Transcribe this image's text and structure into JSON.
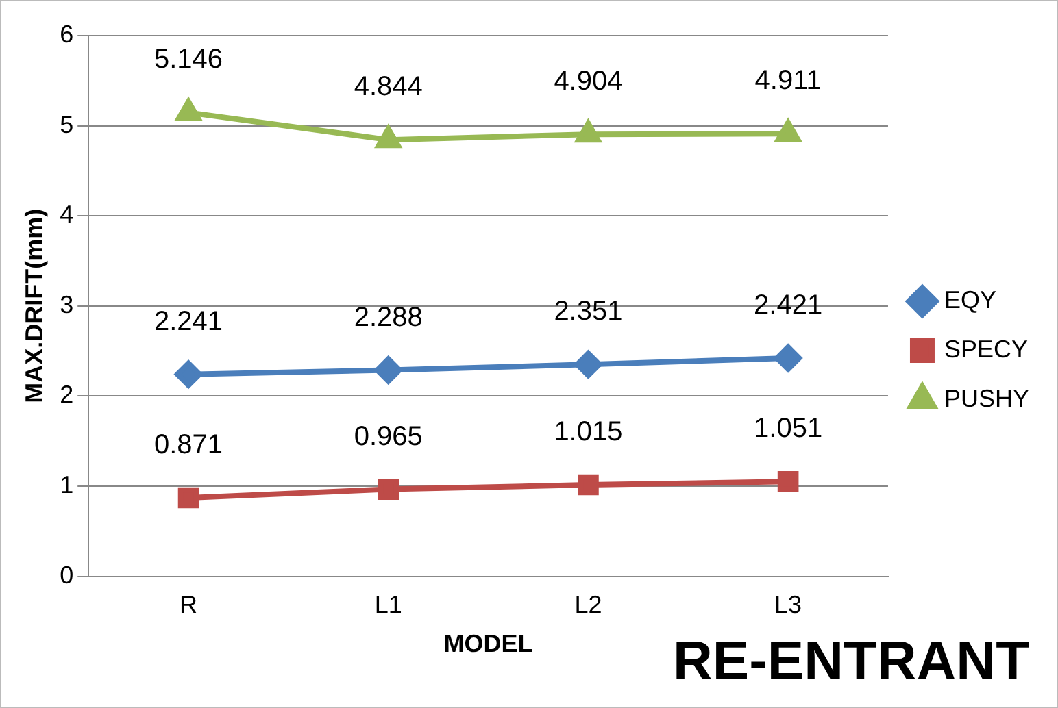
{
  "chart_data": {
    "type": "line",
    "xlabel": "MODEL",
    "ylabel": "MAX.DRIFT(mm)",
    "categories": [
      "R",
      "L1",
      "L2",
      "L3"
    ],
    "series": [
      {
        "name": "EQY",
        "color": "#4a7ebb",
        "marker": "diamond",
        "values": [
          2.241,
          2.288,
          2.351,
          2.421
        ]
      },
      {
        "name": "SPECY",
        "color": "#be4b48",
        "marker": "square",
        "values": [
          0.871,
          0.965,
          1.015,
          1.051
        ]
      },
      {
        "name": "PUSHY",
        "color": "#98b954",
        "marker": "triangle",
        "values": [
          5.146,
          4.844,
          4.904,
          4.911
        ]
      }
    ],
    "ylim": [
      0,
      6
    ],
    "yticks": [
      0,
      1,
      2,
      3,
      4,
      5,
      6
    ],
    "grid": "y",
    "legend": "right",
    "data_labels": true,
    "annotations": [
      "RE-ENTRANT"
    ]
  }
}
